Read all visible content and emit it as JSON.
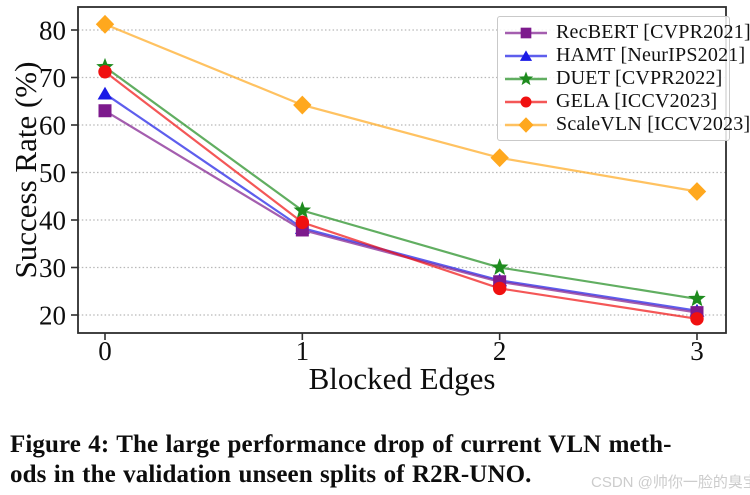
{
  "watermark": {
    "text": "CSDN @帅你一脸的臭宝"
  },
  "caption": {
    "line1": "Figure 4: The large performance drop of current VLN meth-",
    "line2": "ods in the validation unseen splits of R2R-UNO."
  },
  "chart_data": {
    "type": "line",
    "title": "",
    "xlabel": "Blocked Edges",
    "ylabel": "Success Rate (%)",
    "categories": [
      0,
      1,
      2,
      3
    ],
    "yticks": [
      20,
      30,
      40,
      50,
      60,
      70,
      80
    ],
    "ylim": [
      16.2,
      84.8
    ],
    "xlim": [
      -0.14,
      3.15
    ],
    "grid": "horizontal-dotted",
    "legend_position": "upper right",
    "series": [
      {
        "name": "RecBERT [CVPR2021]",
        "color": "#7D1A8D",
        "marker": "square",
        "values": [
          63.0,
          37.9,
          27.0,
          20.5
        ]
      },
      {
        "name": "HAMT [NeurIPS2021]",
        "color": "#1A1AE6",
        "marker": "triangle",
        "values": [
          66.6,
          38.3,
          27.3,
          20.9
        ]
      },
      {
        "name": "DUET [CVPR2022]",
        "color": "#1E8B1E",
        "marker": "star",
        "values": [
          72.2,
          42.0,
          30.0,
          23.4
        ]
      },
      {
        "name": "GELA [ICCV2023]",
        "color": "#F01010",
        "marker": "circle",
        "values": [
          71.2,
          39.5,
          25.6,
          19.2
        ]
      },
      {
        "name": "ScaleVLN [ICCV2023]",
        "color": "#FFA81E",
        "marker": "diamond",
        "values": [
          81.2,
          64.2,
          53.1,
          46.0
        ]
      }
    ]
  }
}
